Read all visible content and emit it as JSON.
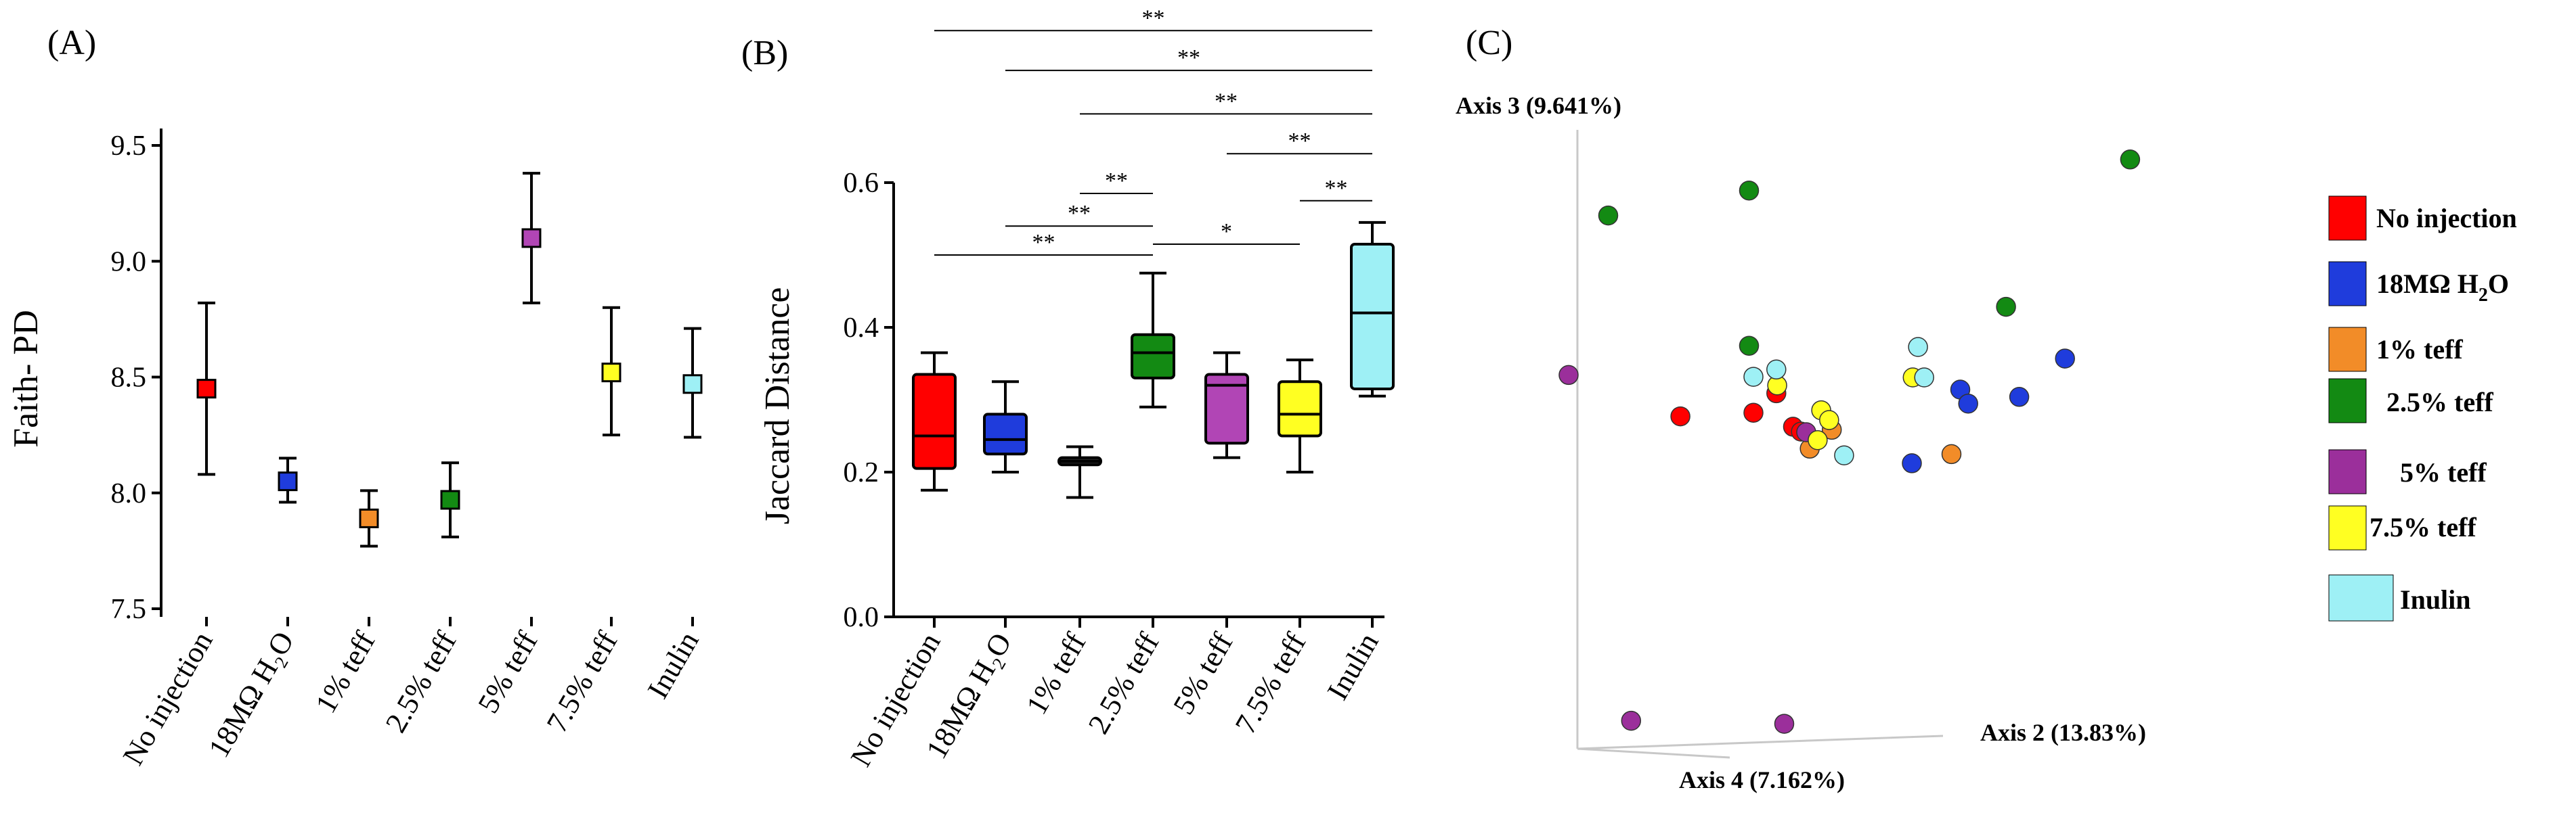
{
  "chart_data": [
    {
      "panel": "(A)",
      "type": "scatter",
      "subtype": "mean-with-error-bars",
      "ylabel": "Faith- PD",
      "ylim": [
        7.5,
        9.5
      ],
      "yticks": [
        "7.5",
        "8.0",
        "8.5",
        "9.0",
        "9.5"
      ],
      "categories": [
        "No injection",
        "18MΩ H₂O",
        "1% teff",
        "2.5% teff",
        "5% teff",
        "7.5% teff",
        "Inulin"
      ],
      "colors": [
        "#ff0000",
        "#1f3cdc",
        "#f28c28",
        "#138a13",
        "#b145b5",
        "#ffff22",
        "#9ef0f5"
      ],
      "means": [
        8.45,
        8.05,
        7.89,
        7.97,
        9.1,
        8.52,
        8.47
      ],
      "upper": [
        8.82,
        8.15,
        8.01,
        8.13,
        9.38,
        8.8,
        8.71
      ],
      "lower": [
        8.08,
        7.96,
        7.77,
        7.81,
        8.82,
        8.25,
        8.24
      ]
    },
    {
      "panel": "(B)",
      "type": "box",
      "ylabel": "Jaccard Distance",
      "ylim": [
        0.0,
        0.6
      ],
      "yticks": [
        "0.0",
        "0.2",
        "0.4",
        "0.6"
      ],
      "categories": [
        "No injection",
        "18MΩ H₂O",
        "1% teff",
        "2.5% teff",
        "5% teff",
        "7.5% teff",
        "Inulin"
      ],
      "colors": [
        "#ff0000",
        "#1f3cdc",
        "#222222",
        "#138a13",
        "#b145b5",
        "#ffff22",
        "#9ef0f5"
      ],
      "boxes": [
        {
          "min": 0.175,
          "q1": 0.205,
          "median": 0.25,
          "q3": 0.335,
          "max": 0.365
        },
        {
          "min": 0.2,
          "q1": 0.225,
          "median": 0.245,
          "q3": 0.28,
          "max": 0.325
        },
        {
          "min": 0.165,
          "q1": 0.21,
          "median": 0.215,
          "q3": 0.22,
          "max": 0.235
        },
        {
          "min": 0.29,
          "q1": 0.33,
          "median": 0.365,
          "q3": 0.39,
          "max": 0.475
        },
        {
          "min": 0.22,
          "q1": 0.24,
          "median": 0.32,
          "q3": 0.335,
          "max": 0.365
        },
        {
          "min": 0.2,
          "q1": 0.25,
          "median": 0.28,
          "q3": 0.325,
          "max": 0.355
        },
        {
          "min": 0.305,
          "q1": 0.315,
          "median": 0.42,
          "q3": 0.515,
          "max": 0.545
        }
      ],
      "significance": [
        {
          "from": 0,
          "to": 6,
          "label": "**",
          "level": 0.81
        },
        {
          "from": 1,
          "to": 6,
          "label": "**",
          "level": 0.755
        },
        {
          "from": 2,
          "to": 6,
          "label": "**",
          "level": 0.695
        },
        {
          "from": 4,
          "to": 6,
          "label": "**",
          "level": 0.64
        },
        {
          "from": 5,
          "to": 6,
          "label": "**",
          "level": 0.575
        },
        {
          "from": 2,
          "to": 3,
          "label": "**",
          "level": 0.585
        },
        {
          "from": 1,
          "to": 3,
          "label": "**",
          "level": 0.54
        },
        {
          "from": 0,
          "to": 3,
          "label": "**",
          "level": 0.5
        },
        {
          "from": 3,
          "to": 5,
          "label": "*",
          "level": 0.515
        }
      ]
    },
    {
      "panel": "(C)",
      "type": "scatter",
      "subtype": "pcoa-3d",
      "axis_labels": {
        "axis3": "Axis 3 (9.641%)",
        "axis2": "Axis 2 (13.83%)",
        "axis4": "Axis 4 (7.162%)"
      },
      "legend": [
        {
          "label": "No injection",
          "color": "#ff0000"
        },
        {
          "label": "18MΩ H",
          "sub": "2",
          "tail": "O",
          "color": "#1f3cdc"
        },
        {
          "label": "1% teff",
          "color": "#f28c28"
        },
        {
          "label": "2.5% teff",
          "color": "#138a13"
        },
        {
          "label": "5% teff",
          "color": "#9b2f9b"
        },
        {
          "label": "7.5% teff",
          "color": "#ffff22"
        },
        {
          "label": "Inulin",
          "color": "#9ef0f5"
        }
      ],
      "points": [
        {
          "g": 0,
          "u": 0.117,
          "v": 0.546
        },
        {
          "g": 0,
          "u": 0.2,
          "v": 0.552
        },
        {
          "g": 0,
          "u": 0.226,
          "v": 0.584
        },
        {
          "g": 0,
          "u": 0.245,
          "v": 0.529
        },
        {
          "g": 0,
          "u": 0.254,
          "v": 0.521
        },
        {
          "g": 1,
          "u": 0.38,
          "v": 0.469
        },
        {
          "g": 1,
          "u": 0.435,
          "v": 0.59
        },
        {
          "g": 1,
          "u": 0.444,
          "v": 0.567
        },
        {
          "g": 1,
          "u": 0.502,
          "v": 0.578
        },
        {
          "g": 1,
          "u": 0.554,
          "v": 0.641
        },
        {
          "g": 2,
          "u": 0.264,
          "v": 0.493
        },
        {
          "g": 2,
          "u": 0.289,
          "v": 0.524
        },
        {
          "g": 2,
          "u": 0.425,
          "v": 0.484
        },
        {
          "g": 3,
          "u": 0.035,
          "v": 0.876
        },
        {
          "g": 3,
          "u": 0.195,
          "v": 0.917
        },
        {
          "g": 3,
          "u": 0.195,
          "v": 0.662
        },
        {
          "g": 3,
          "u": 0.487,
          "v": 0.726
        },
        {
          "g": 3,
          "u": 0.628,
          "v": 0.968
        },
        {
          "g": 4,
          "u": -0.01,
          "v": 0.614
        },
        {
          "g": 4,
          "u": 0.061,
          "v": 0.046
        },
        {
          "g": 4,
          "u": 0.235,
          "v": 0.041
        },
        {
          "g": 4,
          "u": 0.26,
          "v": 0.52
        },
        {
          "g": 5,
          "u": 0.227,
          "v": 0.597
        },
        {
          "g": 5,
          "u": 0.277,
          "v": 0.556
        },
        {
          "g": 5,
          "u": 0.286,
          "v": 0.54
        },
        {
          "g": 5,
          "u": 0.273,
          "v": 0.507
        },
        {
          "g": 5,
          "u": 0.381,
          "v": 0.61
        },
        {
          "g": 6,
          "u": 0.2,
          "v": 0.611
        },
        {
          "g": 6,
          "u": 0.226,
          "v": 0.623
        },
        {
          "g": 6,
          "u": 0.303,
          "v": 0.482
        },
        {
          "g": 6,
          "u": 0.387,
          "v": 0.66
        },
        {
          "g": 6,
          "u": 0.394,
          "v": 0.61
        }
      ]
    }
  ]
}
